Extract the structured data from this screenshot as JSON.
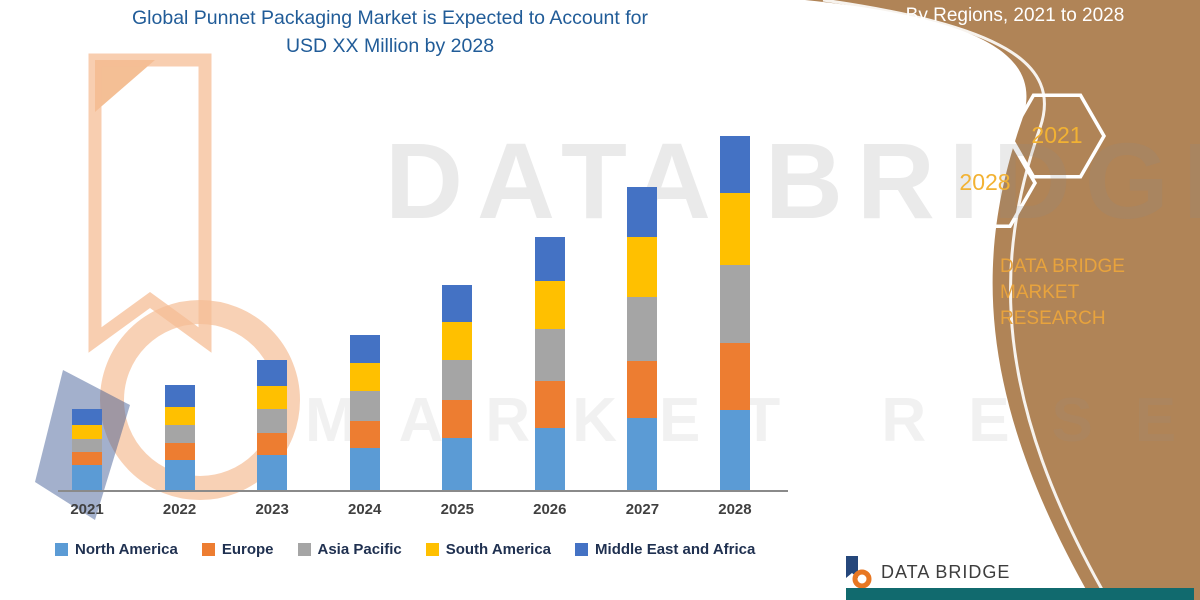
{
  "header": {
    "line1": "Global Punnet Packaging Market is Expected to Account for",
    "line2": "USD XX Million by 2028"
  },
  "side_panel": {
    "heading": "By Regions, 2021 to 2028",
    "hexagon_years": [
      "2028",
      "2021"
    ],
    "brand_line1": "DATA BRIDGE MARKET",
    "brand_line2": "RESEARCH"
  },
  "watermark": {
    "line1": "DATA BRIDGE",
    "line2": "MARKET RESEARCH"
  },
  "footer": {
    "brand": "DATA BRIDGE",
    "logo_icon": "data-bridge-b-icon"
  },
  "colors": {
    "panel_brown": "#B08457",
    "accent_gold": "#E8A33D",
    "title_blue": "#215C98",
    "footer_teal": "#116A6E",
    "hexagon_outline": "#FFFFFF"
  },
  "chart_data": {
    "type": "bar",
    "stacked": true,
    "title": "Global Punnet Packaging Market is Expected to Account for USD XX Million by 2028",
    "xlabel": "",
    "ylabel": "",
    "value_axis_visible": false,
    "units": "relative index (no y-axis values shown in figure)",
    "grid": false,
    "legend_position": "bottom",
    "categories": [
      "2021",
      "2022",
      "2023",
      "2024",
      "2025",
      "2026",
      "2027",
      "2028"
    ],
    "series": [
      {
        "name": "North America",
        "color": "#5B9BD5",
        "values": [
          25,
          30,
          35,
          42,
          52,
          62,
          72,
          80
        ]
      },
      {
        "name": "Europe",
        "color": "#ED7D31",
        "values": [
          13,
          17,
          22,
          27,
          38,
          47,
          57,
          67
        ]
      },
      {
        "name": "Asia Pacific",
        "color": "#A5A5A5",
        "values": [
          13,
          18,
          24,
          30,
          40,
          52,
          64,
          78
        ]
      },
      {
        "name": "South America",
        "color": "#FFC000",
        "values": [
          14,
          18,
          23,
          28,
          38,
          48,
          60,
          72
        ]
      },
      {
        "name": "Middle East and Africa",
        "color": "#4472C4",
        "values": [
          16,
          22,
          26,
          28,
          37,
          44,
          50,
          57
        ]
      }
    ],
    "totals": [
      81,
      105,
      130,
      155,
      205,
      253,
      303,
      354
    ]
  }
}
